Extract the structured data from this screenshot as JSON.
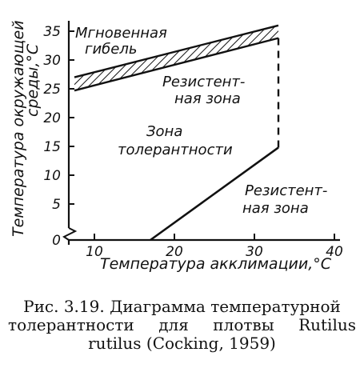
{
  "chart_data": {
    "type": "line",
    "xlabel": "Температура акклимации,°С",
    "ylabel_line1": "Температура окружающей",
    "ylabel_line2": "среды,°С",
    "x_ticks": [
      "10",
      "20",
      "30",
      "40"
    ],
    "y_ticks": [
      "0",
      "5",
      "10",
      "15",
      "20",
      "25",
      "30",
      "35"
    ],
    "xlim": [
      7,
      41
    ],
    "ylim": [
      0,
      36
    ],
    "axis_break": true,
    "upper_band": {
      "upper_boundary": {
        "x": [
          7.5,
          33
        ],
        "y": [
          27,
          36
        ]
      },
      "lower_boundary": {
        "x": [
          7.5,
          33
        ],
        "y": [
          24.7,
          33.8
        ]
      },
      "fill": "hatched"
    },
    "lower_boundary_line": {
      "x": [
        17,
        33
      ],
      "y": [
        0,
        14.8
      ]
    },
    "transition": {
      "x": 33,
      "y_from": 14.8,
      "y_to": 33.8,
      "style": "dashed"
    },
    "annotations": [
      {
        "id": "instant-death",
        "lines": [
          "Мгновенная",
          "гибель"
        ]
      },
      {
        "id": "resistance-upper",
        "lines": [
          "Резистент-",
          "ная зона"
        ]
      },
      {
        "id": "tolerance",
        "lines": [
          "Зона",
          "толерантности"
        ]
      },
      {
        "id": "resistance-lower",
        "lines": [
          "Резистент-",
          "ная зона"
        ]
      }
    ]
  },
  "caption": {
    "line1": "Рис. 3.19. Диаграмма температурной",
    "line2": "толерантности для плотвы Rutilus",
    "line3": "rutilus (Cocking, 1959)"
  }
}
